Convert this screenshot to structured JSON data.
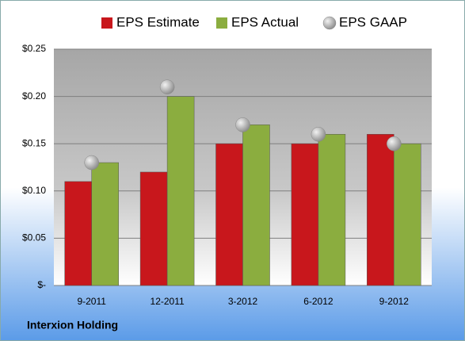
{
  "chart_data": {
    "type": "bar",
    "caption": "Interxion Holding",
    "categories": [
      "9-2011",
      "12-2011",
      "3-2012",
      "6-2012",
      "9-2012"
    ],
    "series": [
      {
        "name": "EPS Estimate",
        "color": "#c8171c",
        "type": "bar",
        "values": [
          0.11,
          0.12,
          0.15,
          0.15,
          0.16
        ]
      },
      {
        "name": "EPS Actual",
        "color": "#8bad3f",
        "type": "bar",
        "values": [
          0.13,
          0.2,
          0.17,
          0.16,
          0.15
        ]
      },
      {
        "name": "EPS GAAP",
        "color": "#a9a9a9",
        "type": "scatter",
        "values": [
          0.13,
          0.21,
          0.17,
          0.16,
          0.15
        ]
      }
    ],
    "ylim": [
      0,
      0.25
    ],
    "yticks": [
      {
        "value": 0,
        "label": "$-"
      },
      {
        "value": 0.05,
        "label": "$0.05"
      },
      {
        "value": 0.1,
        "label": "$0.10"
      },
      {
        "value": 0.15,
        "label": "$0.15"
      },
      {
        "value": 0.2,
        "label": "$0.20"
      },
      {
        "value": 0.25,
        "label": "$0.25"
      }
    ],
    "grid": true
  }
}
